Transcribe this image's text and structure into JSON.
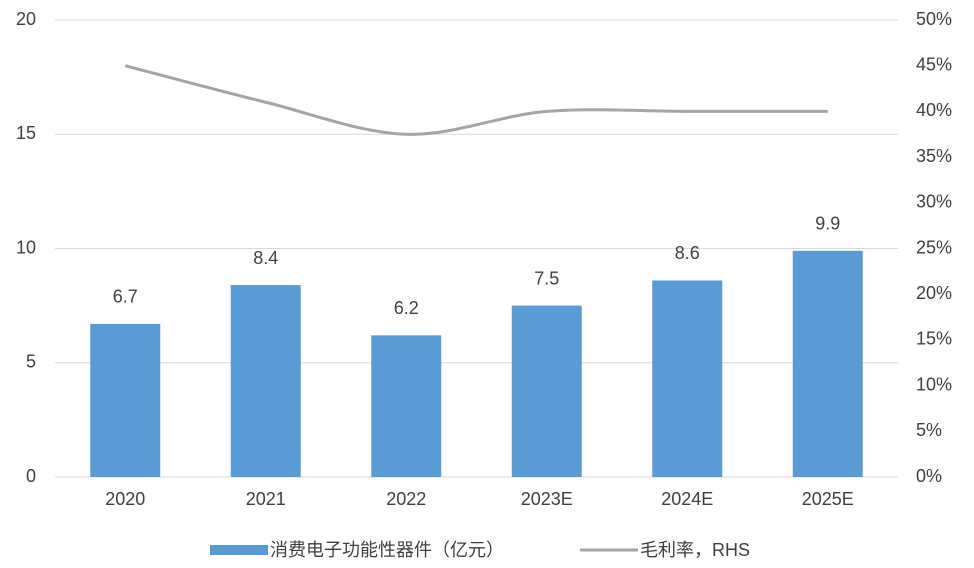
{
  "chart_data": {
    "type": "bar",
    "categories": [
      "2020",
      "2021",
      "2022",
      "2023E",
      "2024E",
      "2025E"
    ],
    "series": [
      {
        "name": "消费电子功能性器件（亿元）",
        "color": "#5b9bd5",
        "type": "bar",
        "values": [
          6.7,
          8.4,
          6.2,
          7.5,
          8.6,
          9.9
        ]
      },
      {
        "name": "毛利率，RHS",
        "color": "#a5a5a5",
        "type": "line",
        "axis": "y2",
        "values": [
          45,
          41,
          37.5,
          40,
          40,
          40
        ]
      }
    ],
    "ylim": [
      0,
      20
    ],
    "yticks": [
      0,
      5,
      10,
      15,
      20
    ],
    "y2lim": [
      0,
      50
    ],
    "y2ticks": [
      {
        "value": 0,
        "label": "0%"
      },
      {
        "value": 5,
        "label": "5%"
      },
      {
        "value": 10,
        "label": "10%"
      },
      {
        "value": 15,
        "label": "15%"
      },
      {
        "value": 20,
        "label": "20%"
      },
      {
        "value": 25,
        "label": "25%"
      },
      {
        "value": 30,
        "label": "30%"
      },
      {
        "value": 35,
        "label": "35%"
      },
      {
        "value": 40,
        "label": "40%"
      },
      {
        "value": 45,
        "label": "45%"
      },
      {
        "value": 50,
        "label": "50%"
      }
    ],
    "grid": true,
    "legend": "bottom"
  }
}
